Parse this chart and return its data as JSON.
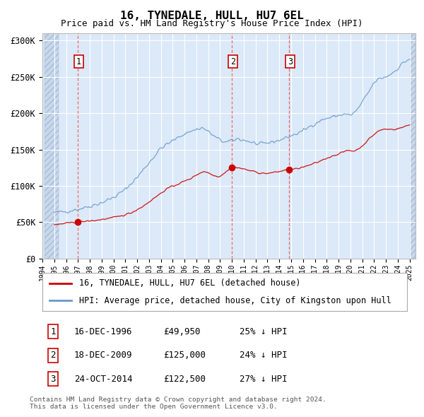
{
  "title": "16, TYNEDALE, HULL, HU7 6EL",
  "subtitle": "Price paid vs. HM Land Registry's House Price Index (HPI)",
  "ylim": [
    0,
    310000
  ],
  "yticks": [
    0,
    50000,
    100000,
    150000,
    200000,
    250000,
    300000
  ],
  "ytick_labels": [
    "£0",
    "£50K",
    "£100K",
    "£150K",
    "£200K",
    "£250K",
    "£300K"
  ],
  "bg_color": "#dce9f8",
  "hatch_color": "#c8d8ec",
  "grid_color": "#ffffff",
  "sale_prices": [
    49950,
    125000,
    122500
  ],
  "sale_labels": [
    "1",
    "2",
    "3"
  ],
  "sale_pct": [
    "25% ↓ HPI",
    "24% ↓ HPI",
    "27% ↓ HPI"
  ],
  "sale_date_labels": [
    "16-DEC-1996",
    "18-DEC-2009",
    "24-OCT-2014"
  ],
  "sale_price_labels": [
    "£49,950",
    "£125,000",
    "£122,500"
  ],
  "legend_line1": "16, TYNEDALE, HULL, HU7 6EL (detached house)",
  "legend_line2": "HPI: Average price, detached house, City of Kingston upon Hull",
  "footer1": "Contains HM Land Registry data © Crown copyright and database right 2024.",
  "footer2": "This data is licensed under the Open Government Licence v3.0.",
  "red_line_color": "#cc0000",
  "blue_line_color": "#6699cc",
  "sale_marker_color": "#cc0000",
  "sale_year_floats": [
    1996.96,
    2009.96,
    2014.8
  ],
  "xlim": [
    1994.2,
    2025.5
  ],
  "hatch_left_end": 1995.4,
  "hatch_right_start": 2025.05
}
